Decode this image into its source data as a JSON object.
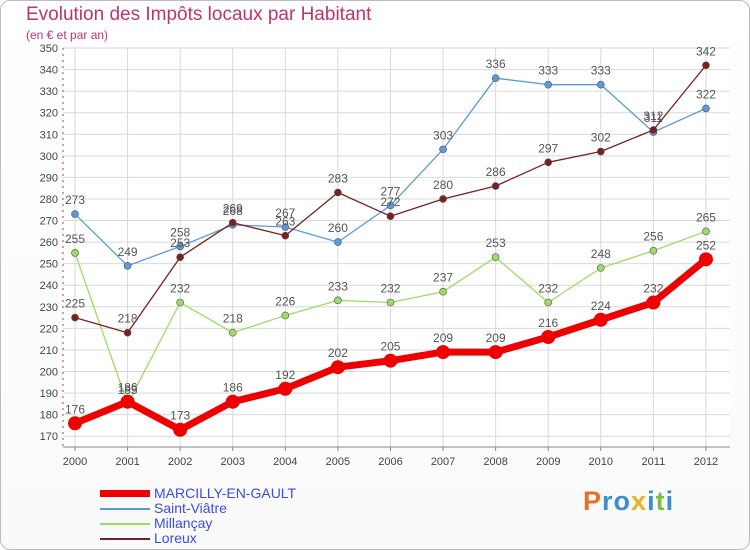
{
  "chart_data": {
    "type": "line",
    "title": "Evolution des Impôts locaux par Habitant",
    "subtitle": "(en € et par an)",
    "xlabel": "",
    "ylabel": "",
    "categories": [
      "2000",
      "2001",
      "2002",
      "2003",
      "2004",
      "2005",
      "2006",
      "2007",
      "2008",
      "2009",
      "2010",
      "2011",
      "2012"
    ],
    "ylim": [
      165,
      350
    ],
    "yticks": [
      170,
      180,
      190,
      200,
      210,
      220,
      230,
      240,
      250,
      260,
      270,
      280,
      290,
      300,
      310,
      320,
      330,
      340,
      350
    ],
    "grid": true,
    "series": [
      {
        "name": "MARCILLY-EN-GAULT",
        "color": "#ee0000",
        "width": 7,
        "marker": 7,
        "values": [
          176,
          186,
          173,
          186,
          192,
          202,
          205,
          209,
          209,
          216,
          224,
          232,
          252
        ]
      },
      {
        "name": "Saint-Viâtre",
        "color": "#5a9bd8",
        "width": 1.3,
        "marker": 3.5,
        "values": [
          273,
          249,
          258,
          268,
          267,
          260,
          277,
          303,
          336,
          333,
          333,
          311,
          322
        ]
      },
      {
        "name": "Millançay",
        "color": "#99dd66",
        "width": 1.3,
        "marker": 3.5,
        "values": [
          255,
          185,
          232,
          218,
          226,
          233,
          232,
          237,
          253,
          232,
          248,
          256,
          265
        ]
      },
      {
        "name": "Loreux",
        "color": "#7a2020",
        "width": 1.3,
        "marker": 3.5,
        "values": [
          225,
          218,
          253,
          269,
          263,
          283,
          272,
          280,
          286,
          297,
          302,
          312,
          342
        ]
      }
    ]
  },
  "logo": {
    "text": "Proxiti",
    "colors": [
      "#e8702a",
      "#3a8fd0",
      "#3a8fd0",
      "#f0b020",
      "#3a8fd0",
      "#7ac043",
      "#3a8fd0"
    ]
  }
}
